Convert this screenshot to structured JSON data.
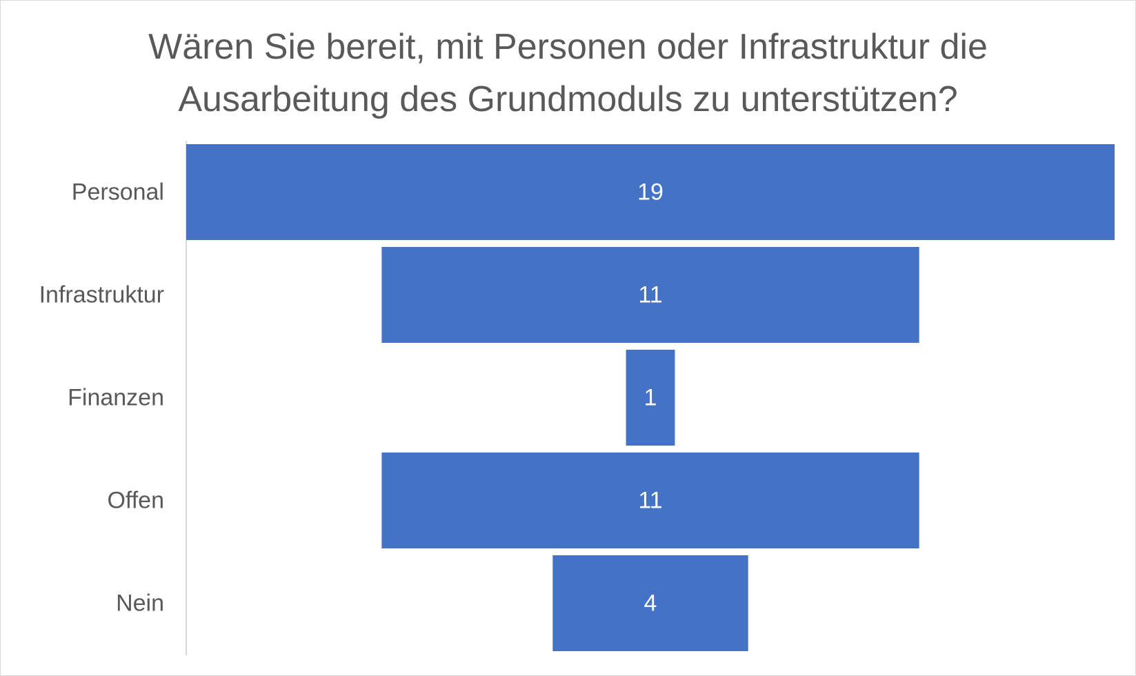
{
  "chart_data": {
    "type": "bar",
    "variant": "funnel",
    "title_lines": [
      "Wären Sie bereit, mit Personen oder Infrastruktur die",
      "Ausarbeitung des Grundmoduls zu unterstützen?"
    ],
    "categories": [
      "Personal",
      "Infrastruktur",
      "Finanzen",
      "Offen",
      "Nein"
    ],
    "values": [
      19,
      11,
      1,
      11,
      4
    ],
    "data_labels": [
      "19",
      "11",
      "1",
      "11",
      "4"
    ],
    "orientation": "horizontal",
    "legend": false,
    "grid": false
  },
  "colors": {
    "bar": "#4472c4",
    "label_text": "#595959",
    "data_label_text": "#ffffff",
    "axis_line": "#d9d9d9",
    "title_text": "#595959"
  }
}
